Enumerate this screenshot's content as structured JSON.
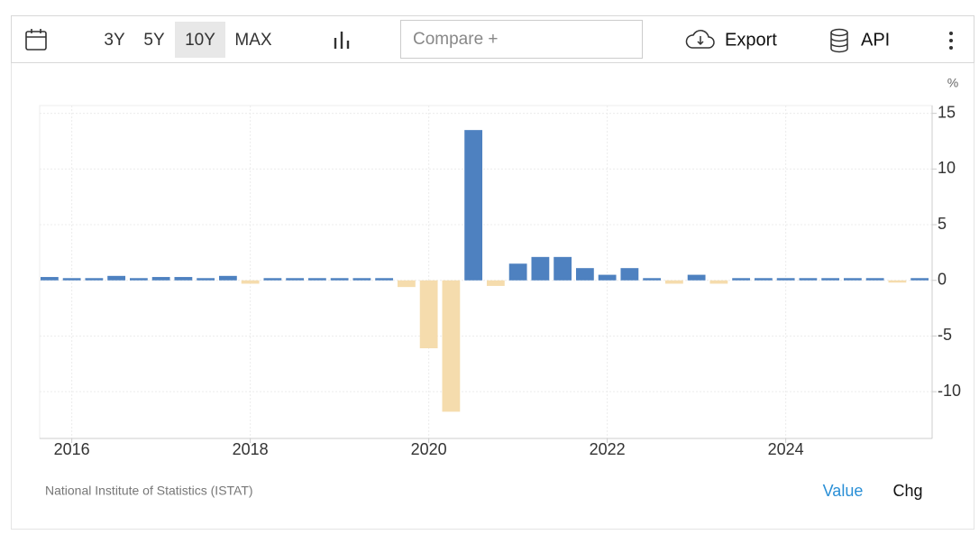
{
  "ui": {
    "ranges": [
      "3Y",
      "5Y",
      "10Y",
      "MAX"
    ],
    "compare": "Compare +",
    "export": "Export",
    "api": "API",
    "source": "National Institute of Statistics (ISTAT)",
    "value_tab": "Value",
    "chg_tab": "Chg"
  },
  "chart_data": {
    "type": "bar",
    "y_unit": "%",
    "x": [
      2015.75,
      2016,
      2016.25,
      2016.5,
      2016.75,
      2017,
      2017.25,
      2017.5,
      2017.75,
      2018,
      2018.25,
      2018.5,
      2018.75,
      2019,
      2019.25,
      2019.5,
      2019.75,
      2020,
      2020.25,
      2020.5,
      2020.75,
      2021,
      2021.25,
      2021.5,
      2021.75,
      2022,
      2022.25,
      2022.5,
      2022.75,
      2023,
      2023.25,
      2023.5,
      2023.75,
      2024,
      2024.25,
      2024.5,
      2024.75,
      2025,
      2025.25,
      2025.5
    ],
    "values": [
      0.3,
      0.2,
      0.2,
      0.4,
      0.2,
      0.3,
      0.3,
      0.2,
      0.4,
      -0.3,
      0.2,
      0.2,
      0.2,
      0.2,
      0.2,
      0.2,
      -0.6,
      -6.1,
      -11.8,
      13.5,
      -0.5,
      1.5,
      2.1,
      2.1,
      1.1,
      0.5,
      1.1,
      0.2,
      -0.3,
      0.5,
      -0.3,
      0.2,
      0.2,
      0.2,
      0.2,
      0.2,
      0.2,
      0.2,
      -0.2,
      0.2
    ],
    "positive_color": "#4e81c0",
    "negative_color": "#f5dcad",
    "xlim": [
      2015.64,
      2025.64
    ],
    "xticks": [
      2016,
      2018,
      2020,
      2022,
      2024
    ],
    "ylim": [
      -14.2,
      15.7
    ],
    "yticks": [
      15,
      10,
      5,
      0,
      -5,
      -10
    ],
    "grid": true
  }
}
